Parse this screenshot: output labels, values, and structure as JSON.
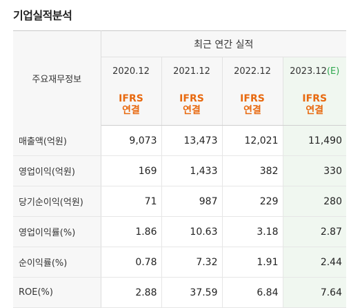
{
  "section_title": "기업실적분석",
  "header": {
    "row_label": "주요재무정보",
    "group_label": "최근 연간 실적",
    "years": [
      {
        "year": "2020.12",
        "estimate_mark": ""
      },
      {
        "year": "2021.12",
        "estimate_mark": ""
      },
      {
        "year": "2022.12",
        "estimate_mark": ""
      },
      {
        "year": "2023.12",
        "estimate_mark": "(E)"
      }
    ],
    "standards": [
      {
        "line1": "IFRS",
        "line2": "연결"
      },
      {
        "line1": "IFRS",
        "line2": "연결"
      },
      {
        "line1": "IFRS",
        "line2": "연결"
      },
      {
        "line1": "IFRS",
        "line2": "연결"
      }
    ]
  },
  "rows": [
    {
      "label": "매출액(억원)",
      "values": [
        "9,073",
        "13,473",
        "12,021",
        "11,490"
      ]
    },
    {
      "label": "영업이익(억원)",
      "values": [
        "169",
        "1,433",
        "382",
        "330"
      ]
    },
    {
      "label": "당기순이익(억원)",
      "values": [
        "71",
        "987",
        "229",
        "280"
      ]
    },
    {
      "label": "영업이익률(%)",
      "values": [
        "1.86",
        "10.63",
        "3.18",
        "2.87"
      ]
    },
    {
      "label": "순이익률(%)",
      "values": [
        "0.78",
        "7.32",
        "1.91",
        "2.44"
      ]
    },
    {
      "label": "ROE(%)",
      "values": [
        "2.88",
        "37.59",
        "6.84",
        "7.64"
      ]
    }
  ],
  "colors": {
    "ifrs_orange": "#e8690f",
    "estimate_green": "#2fa84f",
    "estimate_column_bg": "#f0f7f0",
    "header_bg": "#f7f7f7"
  }
}
